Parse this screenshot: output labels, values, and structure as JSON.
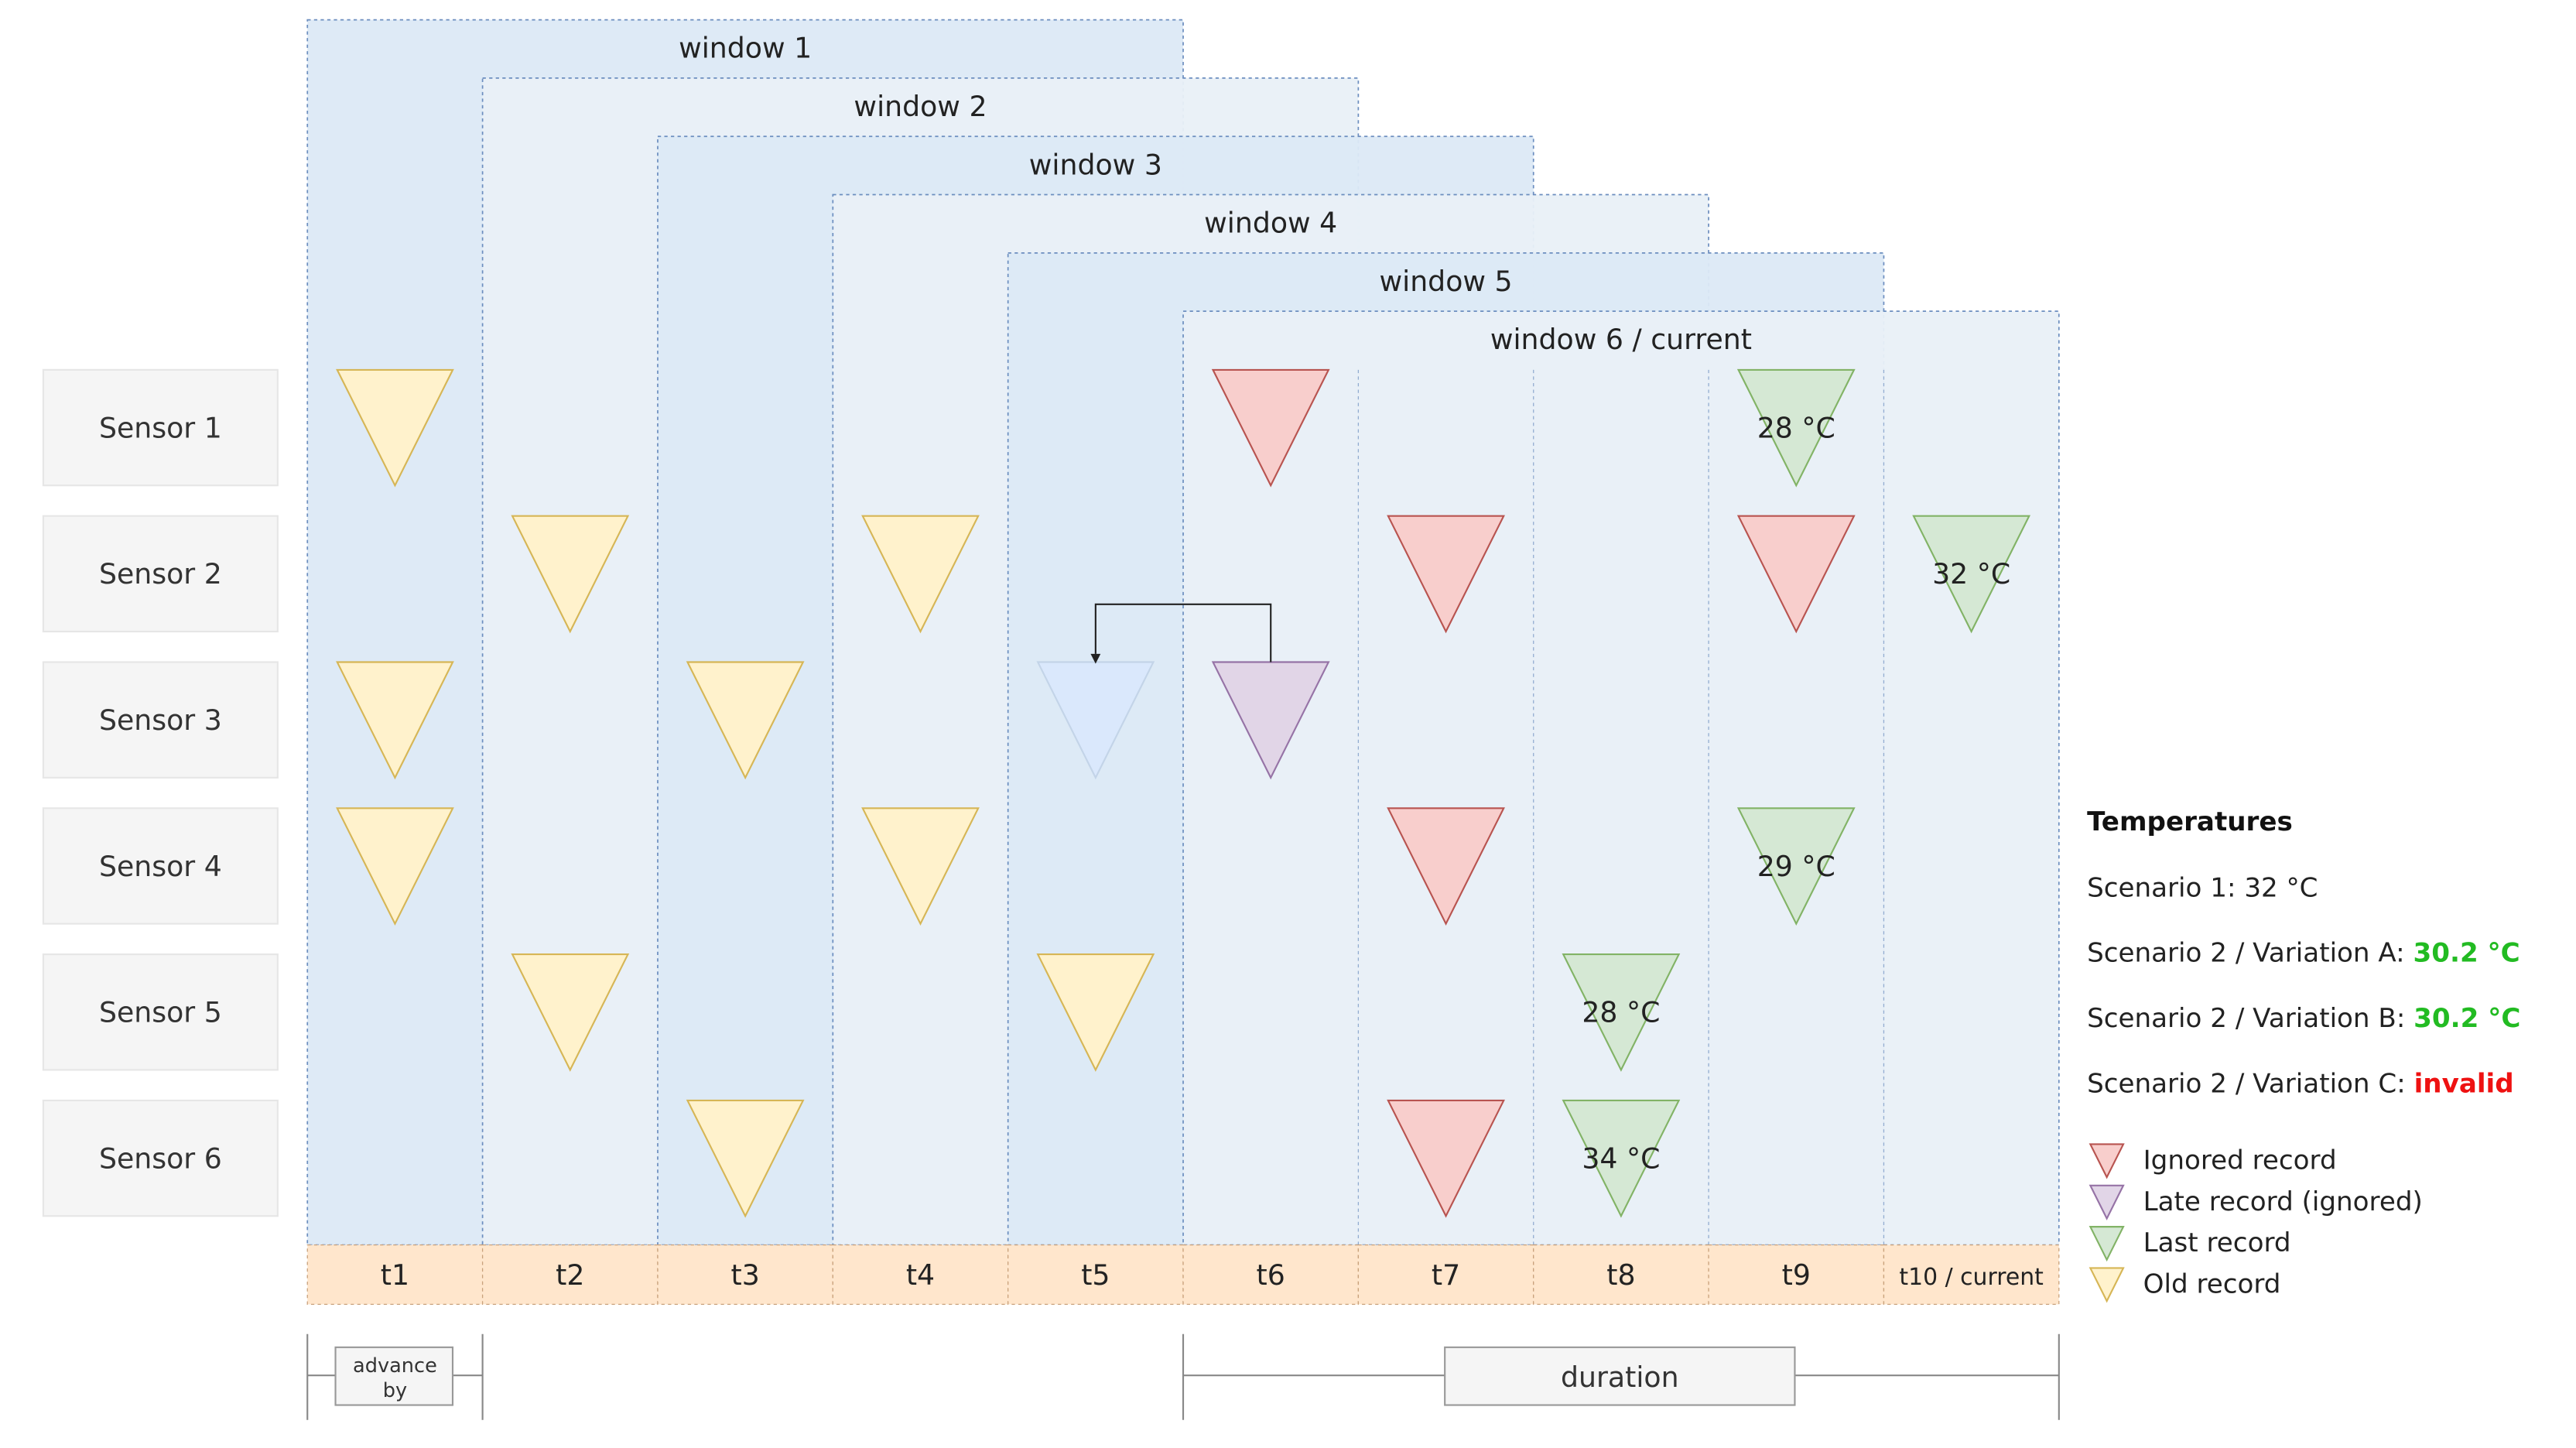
{
  "windows": [
    {
      "label": "window 1"
    },
    {
      "label": "window 2"
    },
    {
      "label": "window 3"
    },
    {
      "label": "window 4"
    },
    {
      "label": "window 5"
    },
    {
      "label": "window 6 / current"
    }
  ],
  "sensors": [
    "Sensor 1",
    "Sensor 2",
    "Sensor 3",
    "Sensor 4",
    "Sensor 5",
    "Sensor 6"
  ],
  "time_slots": [
    "t1",
    "t2",
    "t3",
    "t4",
    "t5",
    "t6",
    "t7",
    "t8",
    "t9",
    "t10 / current"
  ],
  "record_types": {
    "old": {
      "fill": "#fff2cc",
      "stroke": "#d6b656"
    },
    "ignored": {
      "fill": "#f8cecc",
      "stroke": "#b85450"
    },
    "late": {
      "fill": "#e1d5e7",
      "stroke": "#9673a6"
    },
    "last": {
      "fill": "#d5e8d4",
      "stroke": "#82b366"
    },
    "faded": {
      "fill": "#dae8fc",
      "stroke": "#c3d4e8"
    }
  },
  "records": [
    {
      "sensor": 0,
      "slot": 0,
      "type": "old"
    },
    {
      "sensor": 0,
      "slot": 5,
      "type": "ignored"
    },
    {
      "sensor": 0,
      "slot": 8,
      "type": "last",
      "label": "28 °C"
    },
    {
      "sensor": 1,
      "slot": 1,
      "type": "old"
    },
    {
      "sensor": 1,
      "slot": 3,
      "type": "old"
    },
    {
      "sensor": 1,
      "slot": 6,
      "type": "ignored"
    },
    {
      "sensor": 1,
      "slot": 8,
      "type": "ignored"
    },
    {
      "sensor": 1,
      "slot": 9,
      "type": "last",
      "label": "32 °C"
    },
    {
      "sensor": 2,
      "slot": 0,
      "type": "old"
    },
    {
      "sensor": 2,
      "slot": 2,
      "type": "old"
    },
    {
      "sensor": 2,
      "slot": 4,
      "type": "faded"
    },
    {
      "sensor": 2,
      "slot": 5,
      "type": "late"
    },
    {
      "sensor": 3,
      "slot": 0,
      "type": "old"
    },
    {
      "sensor": 3,
      "slot": 3,
      "type": "old"
    },
    {
      "sensor": 3,
      "slot": 6,
      "type": "ignored"
    },
    {
      "sensor": 3,
      "slot": 8,
      "type": "last",
      "label": "29 °C"
    },
    {
      "sensor": 4,
      "slot": 1,
      "type": "old"
    },
    {
      "sensor": 4,
      "slot": 4,
      "type": "old"
    },
    {
      "sensor": 4,
      "slot": 7,
      "type": "last",
      "label": "28 °C"
    },
    {
      "sensor": 5,
      "slot": 2,
      "type": "old"
    },
    {
      "sensor": 5,
      "slot": 6,
      "type": "ignored"
    },
    {
      "sensor": 5,
      "slot": 7,
      "type": "last",
      "label": "34 °C"
    }
  ],
  "late_arrow": {
    "from_slot": 5,
    "to_slot": 4,
    "sensor": 2
  },
  "temperatures": {
    "title": "Temperatures",
    "lines": [
      {
        "text": "Scenario 1: 32 °C",
        "value": "",
        "value_color": ""
      },
      {
        "text": "Scenario 2 / Variation A: ",
        "value": "30.2 °C",
        "value_color": "#22bb22"
      },
      {
        "text": "Scenario 2 / Variation B: ",
        "value": "30.2 °C",
        "value_color": "#22bb22"
      },
      {
        "text": "Scenario 2 / Variation C: ",
        "value": "invalid",
        "value_color": "#ee1111"
      }
    ]
  },
  "legend": [
    {
      "type": "ignored",
      "label": "Ignored record"
    },
    {
      "type": "late",
      "label": "Late record (ignored)"
    },
    {
      "type": "last",
      "label": "Last record"
    },
    {
      "type": "old",
      "label": "Old record"
    }
  ],
  "bracket_labels": {
    "advance_by": [
      "advance",
      "by"
    ],
    "duration": "duration"
  }
}
